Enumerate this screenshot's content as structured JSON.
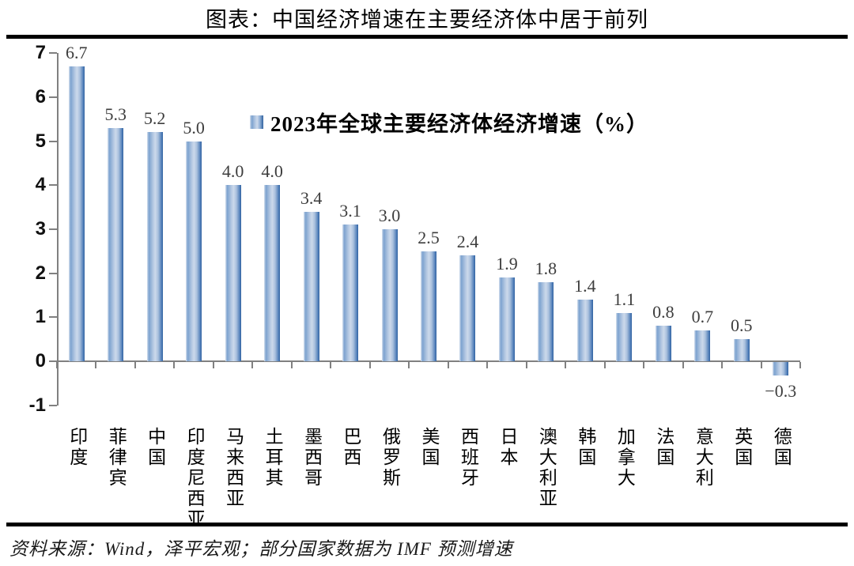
{
  "title": "图表：中国经济增速在主要经济体中居于前列",
  "source": "资料来源：Wind，泽平宏观；部分国家数据为 IMF 预测增速",
  "colors": {
    "bar_dark": "#30629f",
    "bar_light": "#ccd9eb",
    "axis": "#808080",
    "value_label": "#3d3d3d",
    "rule": "#000000"
  },
  "chart_data": {
    "type": "bar",
    "title": "2023年全球主要经济体经济增速（%）",
    "legend_label": "2023年全球主要经济体经济增速（%）",
    "legend_position": "top-center",
    "categories": [
      "印度",
      "菲律宾",
      "中国",
      "印度尼西亚",
      "马来西亚",
      "土耳其",
      "墨西哥",
      "巴西",
      "俄罗斯",
      "美国",
      "西班牙",
      "日本",
      "澳大利亚",
      "韩国",
      "加拿大",
      "法国",
      "意大利",
      "英国",
      "德国"
    ],
    "values": [
      6.7,
      5.3,
      5.2,
      5.0,
      4.0,
      4.0,
      3.4,
      3.1,
      3.0,
      2.5,
      2.4,
      1.9,
      1.8,
      1.4,
      1.1,
      0.8,
      0.7,
      0.5,
      -0.3
    ],
    "value_labels": [
      "6.7",
      "5.3",
      "5.2",
      "5.0",
      "4.0",
      "4.0",
      "3.4",
      "3.1",
      "3.0",
      "2.5",
      "2.4",
      "1.9",
      "1.8",
      "1.4",
      "1.1",
      "0.8",
      "0.7",
      "0.5",
      "−0.3"
    ],
    "xlabel": "",
    "ylabel": "",
    "ylim": [
      -1,
      7
    ],
    "yticks": [
      7,
      6,
      5,
      4,
      3,
      2,
      1,
      0,
      -1
    ],
    "grid": false
  }
}
